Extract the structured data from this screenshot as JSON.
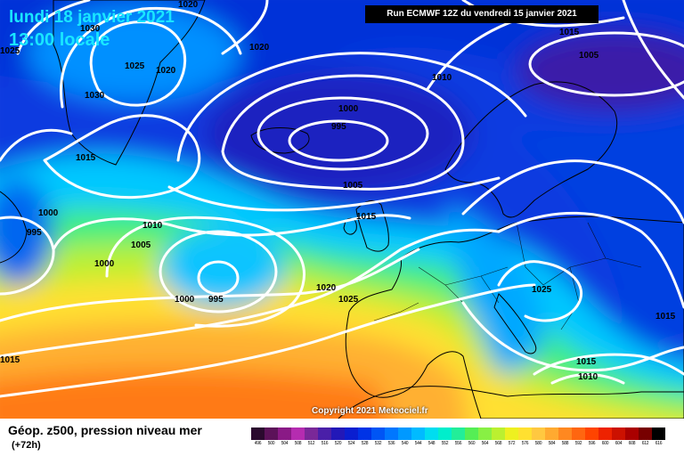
{
  "header": {
    "date": "lundi 18 janvier 2021",
    "time": "13:00 locale",
    "run": "Run ECMWF 12Z du vendredi 15 janvier 2021"
  },
  "copyright": "Copyright 2021 Meteociel.fr",
  "legend": {
    "title": "Géop. z500, pression niveau mer",
    "subtitle": "(+72h)",
    "scale": [
      {
        "label": "496",
        "color": "#2b0a2e"
      },
      {
        "label": "500",
        "color": "#5c1259"
      },
      {
        "label": "504",
        "color": "#8a1a86"
      },
      {
        "label": "508",
        "color": "#b52cb0"
      },
      {
        "label": "512",
        "color": "#7a2898"
      },
      {
        "label": "516",
        "color": "#4a1fa8"
      },
      {
        "label": "520",
        "color": "#2218b8"
      },
      {
        "label": "524",
        "color": "#0a1ed0"
      },
      {
        "label": "528",
        "color": "#0033e6"
      },
      {
        "label": "532",
        "color": "#0055f5"
      },
      {
        "label": "536",
        "color": "#0077ff"
      },
      {
        "label": "540",
        "color": "#0099ff"
      },
      {
        "label": "544",
        "color": "#00bbff"
      },
      {
        "label": "548",
        "color": "#00ddf0"
      },
      {
        "label": "552",
        "color": "#00eecc"
      },
      {
        "label": "556",
        "color": "#22ee99"
      },
      {
        "label": "560",
        "color": "#55ee55"
      },
      {
        "label": "564",
        "color": "#88f044"
      },
      {
        "label": "568",
        "color": "#bbf030"
      },
      {
        "label": "572",
        "color": "#eef020"
      },
      {
        "label": "576",
        "color": "#ffe030"
      },
      {
        "label": "580",
        "color": "#ffc840"
      },
      {
        "label": "584",
        "color": "#ffaa30"
      },
      {
        "label": "588",
        "color": "#ff8820"
      },
      {
        "label": "592",
        "color": "#ff6610"
      },
      {
        "label": "596",
        "color": "#ff4400"
      },
      {
        "label": "600",
        "color": "#ee2200"
      },
      {
        "label": "604",
        "color": "#cc1100"
      },
      {
        "label": "608",
        "color": "#aa0000"
      },
      {
        "label": "612",
        "color": "#770000"
      },
      {
        "label": "616",
        "color": "#000000"
      }
    ]
  },
  "pressure_labels": [
    "1020",
    "1030",
    "1025",
    "1020",
    "1020",
    "1025",
    "1030",
    "1010",
    "1005",
    "1000",
    "995",
    "1015",
    "1005",
    "1015",
    "1000",
    "995",
    "1010",
    "1005",
    "1000",
    "1000",
    "995",
    "1020",
    "1025",
    "1015",
    "1025",
    "1015",
    "1015",
    "1015",
    "1010"
  ],
  "colors": {
    "isobar": "#ffffff",
    "accent_title": "#19e6ff"
  }
}
